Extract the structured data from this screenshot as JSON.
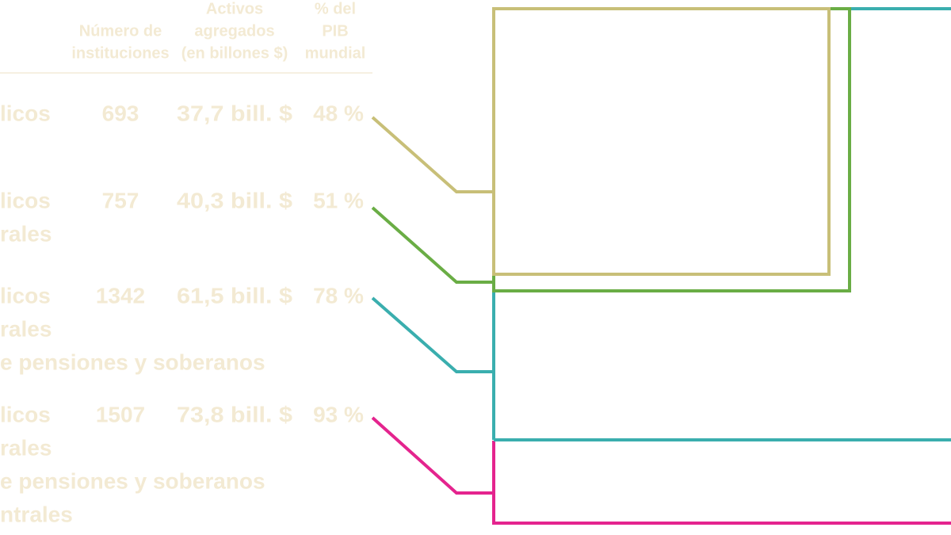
{
  "table": {
    "header": [
      "Número de instituciones",
      "Activos agregados (en billones $)",
      "% del PIB mundial"
    ],
    "header_lines": [
      [
        "Número de",
        "instituciones"
      ],
      [
        "Activos",
        "agregados",
        "(en billones $)"
      ],
      [
        "% del",
        "PIB",
        "mundial"
      ]
    ],
    "rows": [
      {
        "label": [
          "licos"
        ],
        "cells": [
          "693",
          "37,7 bill. $",
          "48 %"
        ]
      },
      {
        "label": [
          "licos",
          "rales"
        ],
        "cells": [
          "757",
          "40,3 bill. $",
          "51 %"
        ]
      },
      {
        "label": [
          "licos",
          "rales",
          "e pensiones y soberanos"
        ],
        "cells": [
          "1342",
          "61,5 bill. $",
          "78 %"
        ]
      },
      {
        "label": [
          "licos",
          "rales",
          "e pensiones y soberanos",
          "ntrales"
        ],
        "cells": [
          "1507",
          "73,8 bill. $",
          "93 %"
        ]
      }
    ]
  }
}
